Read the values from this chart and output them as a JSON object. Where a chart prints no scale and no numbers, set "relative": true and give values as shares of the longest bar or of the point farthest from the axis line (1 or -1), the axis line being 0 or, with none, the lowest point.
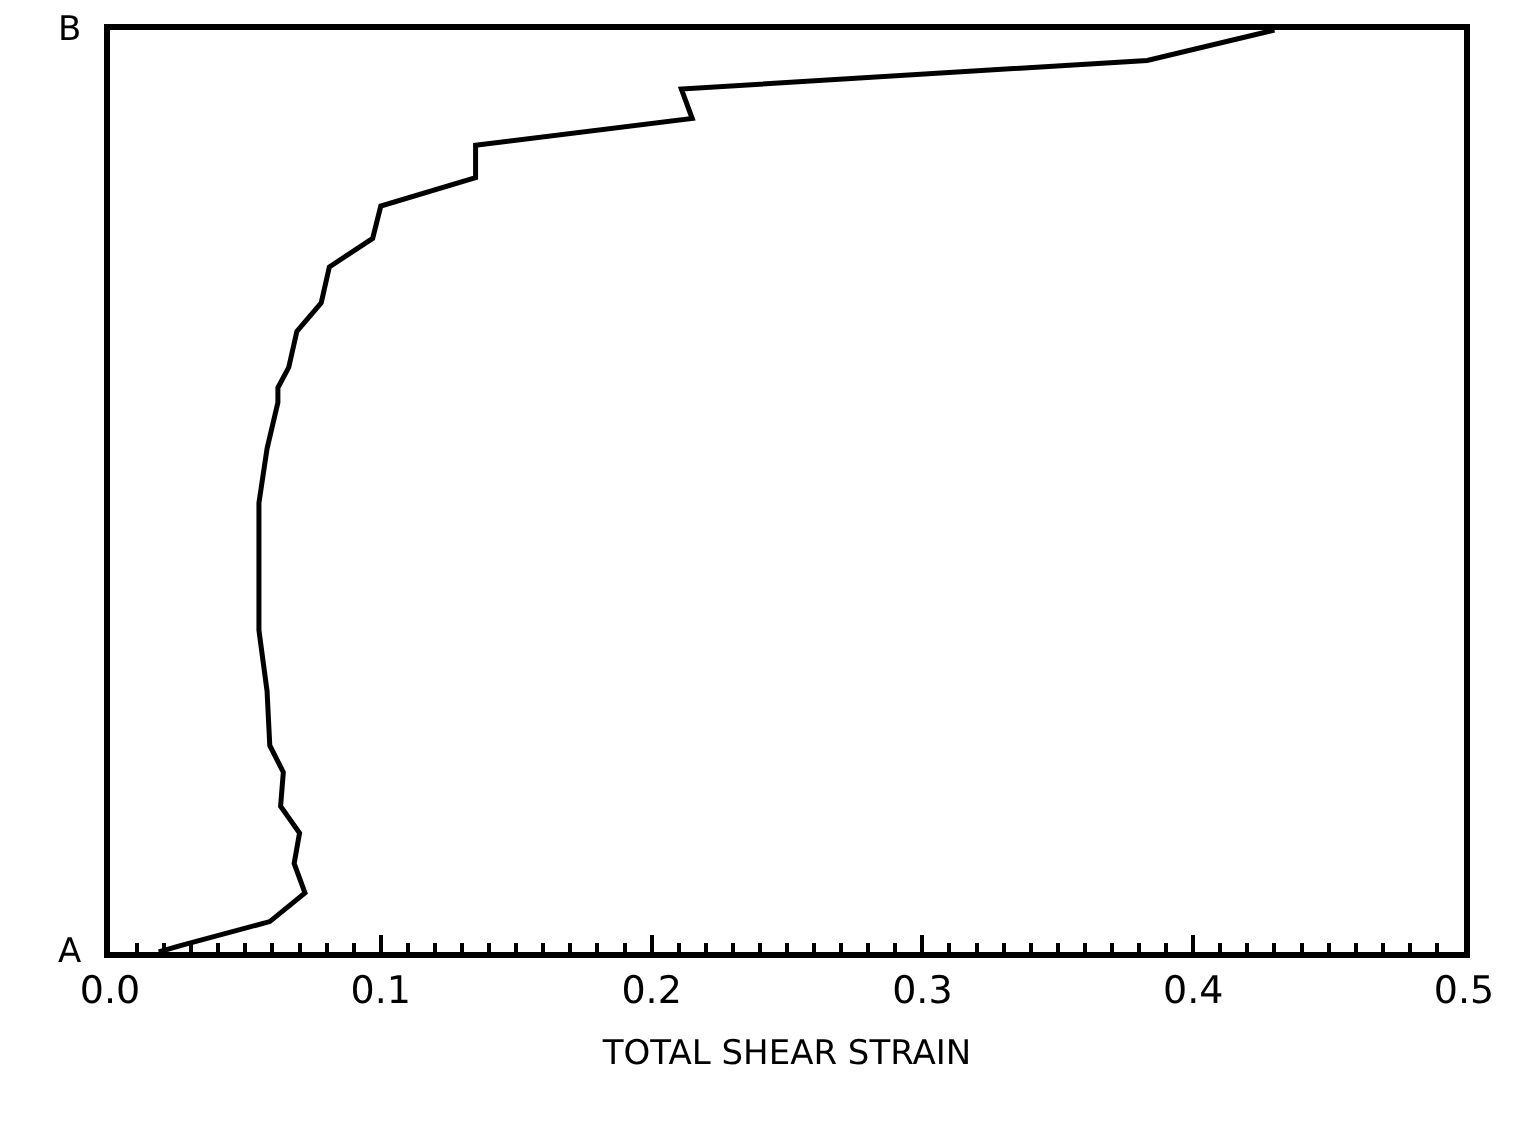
{
  "chart_data": {
    "type": "line",
    "xlabel": "TOTAL SHEAR STRAIN",
    "x": [
      0.018,
      0.026,
      0.059,
      0.072,
      0.068,
      0.07,
      0.063,
      0.064,
      0.059,
      0.058,
      0.055,
      0.055,
      0.055,
      0.058,
      0.062,
      0.062,
      0.066,
      0.069,
      0.078,
      0.081,
      0.097,
      0.1,
      0.135,
      0.135,
      0.215,
      0.211,
      0.383,
      0.43
    ],
    "series": [
      {
        "color": "#000000",
        "values": [
          0.0,
          0.007,
          0.033,
          0.064,
          0.096,
          0.129,
          0.158,
          0.195,
          0.224,
          0.283,
          0.349,
          0.421,
          0.487,
          0.546,
          0.596,
          0.612,
          0.634,
          0.673,
          0.704,
          0.743,
          0.774,
          0.809,
          0.84,
          0.875,
          0.904,
          0.936,
          0.967,
          1.0
        ]
      }
    ],
    "xlim": [
      0,
      0.5
    ],
    "xticks": [
      {
        "value": 0,
        "label": "0.0"
      },
      {
        "value": 0.01,
        "label": null
      },
      {
        "value": 0.02,
        "label": null
      },
      {
        "value": 0.03,
        "label": null
      },
      {
        "value": 0.04,
        "label": null
      },
      {
        "value": 0.05,
        "label": null
      },
      {
        "value": 0.06,
        "label": null
      },
      {
        "value": 0.07,
        "label": null
      },
      {
        "value": 0.08,
        "label": null
      },
      {
        "value": 0.09,
        "label": null
      },
      0.1,
      {
        "value": 0.11,
        "label": null
      },
      {
        "value": 0.12,
        "label": null
      },
      {
        "value": 0.13,
        "label": null
      },
      {
        "value": 0.14,
        "label": null
      },
      {
        "value": 0.15,
        "label": null
      },
      {
        "value": 0.16,
        "label": null
      },
      {
        "value": 0.17,
        "label": null
      },
      {
        "value": 0.18,
        "label": null
      },
      {
        "value": 0.19,
        "label": null
      },
      0.2,
      {
        "value": 0.21,
        "label": null
      },
      {
        "value": 0.22,
        "label": null
      },
      {
        "value": 0.23,
        "label": null
      },
      {
        "value": 0.24,
        "label": null
      },
      {
        "value": 0.25,
        "label": null
      },
      {
        "value": 0.26,
        "label": null
      },
      {
        "value": 0.27,
        "label": null
      },
      {
        "value": 0.28,
        "label": null
      },
      {
        "value": 0.29,
        "label": null
      },
      0.3,
      {
        "value": 0.31,
        "label": null
      },
      {
        "value": 0.32,
        "label": null
      },
      {
        "value": 0.33,
        "label": null
      },
      {
        "value": 0.34,
        "label": null
      },
      {
        "value": 0.35,
        "label": null
      },
      {
        "value": 0.36,
        "label": null
      },
      {
        "value": 0.37,
        "label": null
      },
      {
        "value": 0.38,
        "label": null
      },
      {
        "value": 0.39,
        "label": null
      },
      0.4,
      {
        "value": 0.41,
        "label": null
      },
      {
        "value": 0.42,
        "label": null
      },
      {
        "value": 0.43,
        "label": null
      },
      {
        "value": 0.44,
        "label": null
      },
      {
        "value": 0.45,
        "label": null
      },
      {
        "value": 0.46,
        "label": null
      },
      {
        "value": 0.47,
        "label": null
      },
      {
        "value": 0.48,
        "label": null
      },
      {
        "value": 0.49,
        "label": null
      },
      0.5
    ],
    "relative": true,
    "annotations": [
      "A",
      "B"
    ],
    "marker": "none",
    "line_style": "solid"
  }
}
